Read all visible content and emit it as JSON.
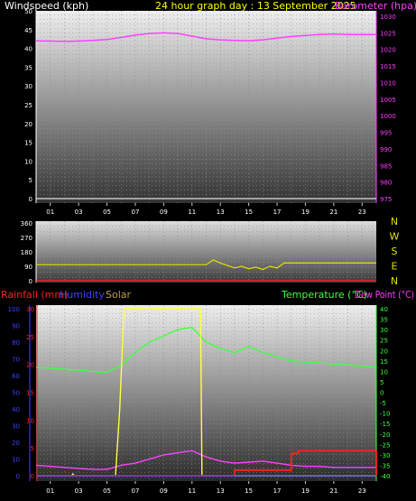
{
  "title": "24 hour graph day : 13 September 2025",
  "colors": {
    "title": "#ffff00",
    "wind_label": "#ffffff",
    "barometer": "#ff40ff",
    "direction": "#e0e000",
    "temperature": "#40ff40",
    "dewpoint": "#ff40ff",
    "rainfall": "#ff2020",
    "humidity": "#4040ff",
    "solar": "#ffff40"
  },
  "x_ticks": [
    "01",
    "03",
    "05",
    "07",
    "09",
    "11",
    "13",
    "15",
    "17",
    "19",
    "21",
    "23"
  ],
  "x_ticks_panel3": [
    "01",
    "03",
    "05",
    "07",
    "09",
    "11",
    "13",
    "15",
    "17",
    "19",
    "21",
    "23"
  ],
  "panel1": {
    "left_label": "Windspeed (kph)",
    "right_label": "Barometer (hpa)",
    "left_ticks": [
      "0",
      "5",
      "10",
      "15",
      "20",
      "25",
      "30",
      "35",
      "40",
      "45",
      "50"
    ],
    "right_ticks": [
      "975",
      "980",
      "985",
      "990",
      "995",
      "1000",
      "1005",
      "1010",
      "1015",
      "1020",
      "1025",
      "1030"
    ]
  },
  "panel2": {
    "left_ticks": [
      "0",
      "90",
      "180",
      "270",
      "360"
    ],
    "compass": [
      "N",
      "W",
      "S",
      "E",
      "N"
    ]
  },
  "panel3": {
    "rain_label": "Rainfall (mm)",
    "humidity_label": "Humidity",
    "solar_label": "Solar",
    "temp_label": "Temperature (°C)",
    "dew_label": "Dew Point (°C)",
    "humidity_ticks": [
      "0",
      "10",
      "20",
      "30",
      "40",
      "50",
      "60",
      "70",
      "80",
      "90",
      "100"
    ],
    "rain_ticks": [
      "0",
      "5",
      "10",
      "15",
      "20",
      "25",
      "30"
    ],
    "temp_ticks": [
      "-40",
      "-35",
      "-30",
      "-25",
      "-20",
      "-15",
      "-10",
      "-5",
      "0",
      "5",
      "10",
      "15",
      "20",
      "25",
      "30",
      "35",
      "40"
    ]
  },
  "chart_data": [
    {
      "type": "line",
      "title": "24 hour graph day : 13 September 2025",
      "xlim": [
        0,
        24
      ],
      "ylabel": "Windspeed (kph)",
      "ylim": [
        0,
        50
      ],
      "y2label": "Barometer (hpa)",
      "y2lim": [
        975,
        1030
      ],
      "series": [
        {
          "name": "Windspeed (kph)",
          "axis": "left",
          "x": [
            0,
            24
          ],
          "y": [
            0,
            0
          ]
        },
        {
          "name": "Barometer (hpa)",
          "axis": "right",
          "x": [
            0,
            1,
            2,
            3,
            4,
            5,
            6,
            7,
            8,
            9,
            10,
            11,
            12,
            13,
            14,
            15,
            16,
            17,
            18,
            19,
            20,
            21,
            22,
            23,
            24
          ],
          "y": [
            1022.6,
            1022.5,
            1022.4,
            1022.5,
            1022.7,
            1023.0,
            1023.6,
            1024.3,
            1024.8,
            1025.0,
            1024.8,
            1024.0,
            1023.2,
            1022.9,
            1022.7,
            1022.6,
            1022.9,
            1023.4,
            1023.9,
            1024.2,
            1024.5,
            1024.6,
            1024.5,
            1024.5,
            1024.5
          ]
        }
      ]
    },
    {
      "type": "line",
      "ylabel": "Wind Direction",
      "ylim": [
        0,
        360
      ],
      "xlim": [
        0,
        24
      ],
      "series": [
        {
          "name": "Wind Direction",
          "axis": "left",
          "x": [
            0,
            1,
            2,
            3,
            4,
            5,
            6,
            7,
            8,
            9,
            10,
            11,
            12,
            12.5,
            13,
            13.5,
            14,
            14.5,
            15,
            15.5,
            16,
            16.5,
            17,
            17.5,
            18,
            19,
            20,
            21,
            22,
            23,
            24
          ],
          "y": [
            100,
            100,
            100,
            100,
            100,
            100,
            100,
            100,
            100,
            100,
            100,
            100,
            100,
            130,
            110,
            95,
            80,
            90,
            75,
            85,
            70,
            90,
            80,
            110,
            110,
            110,
            110,
            110,
            110,
            110,
            110
          ]
        }
      ]
    },
    {
      "type": "line",
      "xlim": [
        0,
        24
      ],
      "series": [
        {
          "name": "Temperature (°C)",
          "axis": "temp",
          "ylim": [
            -40,
            40
          ],
          "x": [
            0,
            1,
            2,
            3,
            4,
            5,
            6,
            7,
            8,
            9,
            10,
            11,
            12,
            13,
            14,
            15,
            16,
            17,
            18,
            19,
            20,
            21,
            22,
            23,
            24
          ],
          "y": [
            12,
            11.5,
            11,
            10.5,
            10,
            9.5,
            13,
            19,
            24,
            27,
            30,
            31,
            24,
            21,
            19,
            22,
            19,
            17,
            15,
            14.5,
            14,
            13.5,
            13,
            12.5,
            12
          ]
        },
        {
          "name": "Dew Point (°C)",
          "axis": "temp",
          "ylim": [
            -40,
            40
          ],
          "x": [
            0,
            1,
            2,
            3,
            4,
            5,
            6,
            7,
            8,
            9,
            10,
            11,
            12,
            13,
            14,
            15,
            16,
            17,
            18,
            19,
            20,
            21,
            22,
            23,
            24
          ],
          "y": [
            -35,
            -35.5,
            -36,
            -36.5,
            -37,
            -37,
            -35,
            -34,
            -32,
            -30,
            -29,
            -28,
            -31,
            -33,
            -34,
            -33.5,
            -33,
            -34,
            -35,
            -35.5,
            -35.5,
            -36,
            -36,
            -36,
            -36
          ]
        },
        {
          "name": "Humidity",
          "axis": "humidity",
          "ylim": [
            0,
            100
          ],
          "x": [
            0,
            24
          ],
          "y": [
            0,
            0
          ]
        },
        {
          "name": "Rainfall (mm)",
          "axis": "rain",
          "ylim": [
            0,
            30
          ],
          "x": [
            0,
            13.5,
            14,
            17.5,
            18,
            18.5,
            23.7,
            24
          ],
          "y": [
            0,
            0,
            1,
            1,
            4,
            4.5,
            4.5,
            0
          ]
        },
        {
          "name": "Solar",
          "axis": "humidity",
          "ylim": [
            0,
            100
          ],
          "x": [
            0,
            2.5,
            2.6,
            2.7,
            5.6,
            5.9,
            6.2,
            11.6,
            11.7,
            12,
            24
          ],
          "y": [
            0,
            0,
            1,
            0,
            0,
            40,
            100,
            100,
            0,
            0,
            0
          ]
        }
      ]
    }
  ]
}
